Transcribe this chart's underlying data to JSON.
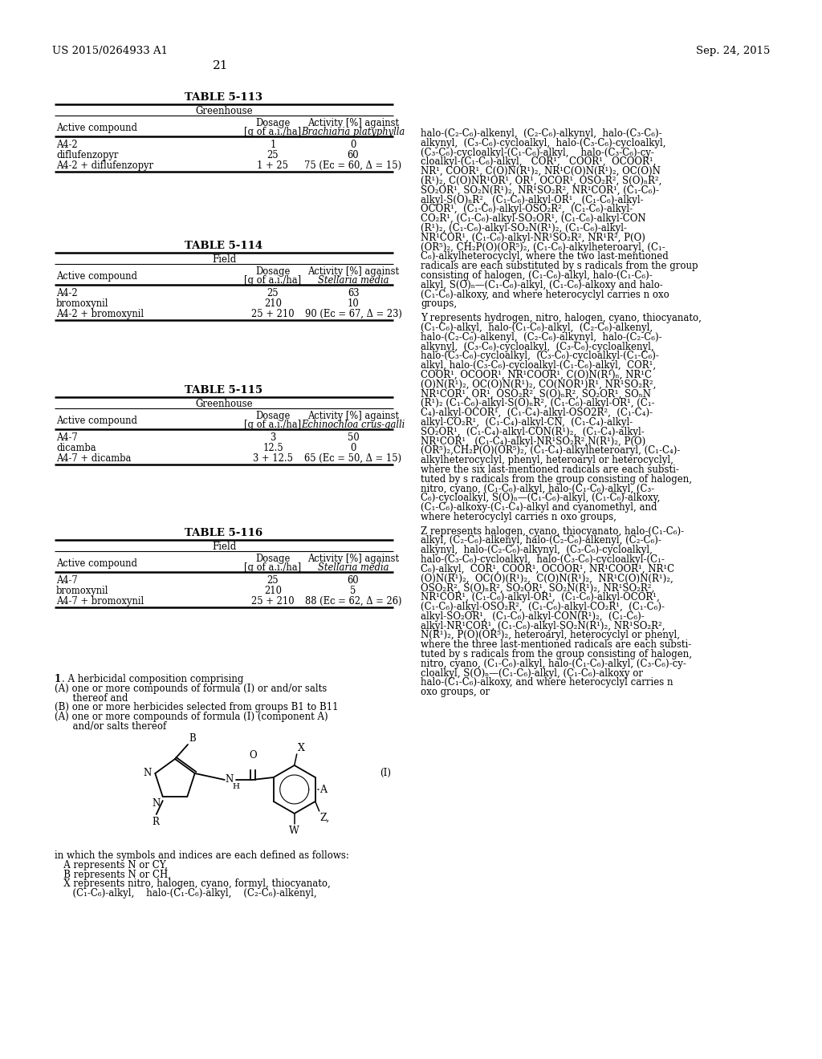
{
  "header_left": "US 2015/0264933 A1",
  "header_right": "Sep. 24, 2015",
  "page_number": "21",
  "tables": [
    {
      "title": "TABLE 5-113",
      "subtitle": "Greenhouse",
      "col3_italic": "Brachiaria platyphylla",
      "rows": [
        [
          "A4-2",
          "1",
          "0"
        ],
        [
          "diflufenzopyr",
          "25",
          "60"
        ],
        [
          "A4-2 + diflufenzopyr",
          "1 + 25",
          "75 (Eᴄ = 60, Δ = 15)"
        ]
      ]
    },
    {
      "title": "TABLE 5-114",
      "subtitle": "Field",
      "col3_italic": "Stellaria media",
      "rows": [
        [
          "A4-2",
          "25",
          "63"
        ],
        [
          "bromoxynil",
          "210",
          "10"
        ],
        [
          "A4-2 + bromoxynil",
          "25 + 210",
          "90 (Eᴄ = 67, Δ = 23)"
        ]
      ]
    },
    {
      "title": "TABLE 5-115",
      "subtitle": "Greenhouse",
      "col3_italic": "Echinochloa crus-galli",
      "rows": [
        [
          "A4-7",
          "3",
          "50"
        ],
        [
          "dicamba",
          "12.5",
          "0"
        ],
        [
          "A4-7 + dicamba",
          "3 + 12.5",
          "65 (Eᴄ = 50, Δ = 15)"
        ]
      ]
    },
    {
      "title": "TABLE 5-116",
      "subtitle": "Field",
      "col3_italic": "Stellaria media",
      "rows": [
        [
          "A4-7",
          "25",
          "60"
        ],
        [
          "bromoxynil",
          "210",
          "5"
        ],
        [
          "A4-7 + bromoxynil",
          "25 + 210",
          "88 (Eᴄ = 62, Δ = 26)"
        ]
      ]
    }
  ],
  "claim_lines": [
    "   ¹· A herbicidal composition comprising",
    "(A) one or more compounds of formula (I) or and/or salts",
    "      thereof and",
    "(B) one or more herbicides selected from groups B1 to B11",
    "(A) one or more compounds of formula (I) (component A)",
    "      and/or salts thereof"
  ],
  "symbol_lines": [
    "in which the symbols and indices are each defined as follows:",
    "   A represents N or CY,",
    "   B represents N or CH,",
    "   X represents nitro, halogen, cyano, formyl, thiocyanato,",
    "      (C₁-C₆)-alkyl,    halo-(C₁-C₆)-alkyl,    (C₂-C₆)-alkenyl,"
  ],
  "right_col_lines": [
    "halo-(C₂-C₆)-alkenyl,  (C₂-C₆)-alkynyl,  halo-(C₃-C₆)-",
    "alkynyl,  (C₃-C₆)-cycloalkyl,  halo-(C₃-C₆)-cycloalkyl,",
    "(C₃-C₆)-cycloalkyl-(C₁-C₆)-alkyl,    halo-(C₃-C₆)-cy-",
    "cloalkyl-(C₁-C₆)-alkyl,   COR¹,   COOR¹,  OCOOR¹,",
    "NR¹, COOR¹, C(O)N(R¹)₂, NR¹C(O)N(R¹)₂, OC(O)N",
    "(R¹)₂, C(O)NR¹OR¹, OR¹, OCOR¹, OSO₂R², S(O)ₙR²,",
    "SO₂OR¹, SO₂N(R¹)₂, NR¹SO₂R², NR¹COR¹, (C₁-C₆)-",
    "alkyl-S(O)ₙR²,  (C₁-C₆)-alkyl-OR¹,  (C₁-C₆)-alkyl-",
    "OCOR¹,  (C₁-C₆)-alkyl-OSO₂R²,  (C₁-C₆)-alkyl-",
    "CO₂R¹, (C₁-C₆)-alkyl-SO₂OR¹, (C₁-C₆)-alkyl-CON",
    "(R¹)₂, (C₁-C₆)-alkyl-SO₂N(R¹)₂, (C₁-C₆)-alkyl-",
    "NR¹COR¹, (C₁-C₆)-alkyl-NR¹SO₂R², NR¹R², P(O)",
    "(OR⁵)₂, CH₂P(O)(OR⁵)₂, (C₁-C₆)-alkylheteroaryl, (C₁-",
    "C₆)-alkylheterocyclyl, where the two last-mentioned",
    "radicals are each substituted by s radicals from the group",
    "consisting of halogen, (C₁-C₆)-alkyl, halo-(C₁-C₆)-",
    "alkyl, S(O)ₙ—(C₁-C₆)-alkyl, (C₁-C₆)-alkoxy and halo-",
    "(C₁-C₆)-alkoxy, and where heterocyclyl carries n oxo",
    "groups,",
    "",
    "Y represents hydrogen, nitro, halogen, cyano, thiocyanato,",
    "(C₁-C₆)-alkyl,  halo-(C₁-C₆)-alkyl,  (C₂-C₆)-alkenyl,",
    "halo-(C₂-C₆)-alkenyl,  (C₂-C₆)-alkynyl,  halo-(C₂-C₆)-",
    "alkynyl,  (C₃-C₆)-cycloalkyl,  (C₃-C₆)-cycloalkenyl,",
    "halo-(C₃-C₆)-cycloalkyl,  (C₃-C₆)-cycloalkyl-(C₁-C₆)-",
    "alkyl, halo-(C₃-C₆)-cycloalkyl-(C₁-C₆)-alkyl,  COR¹,",
    "COOR¹, OCOOR¹, NR¹COOR¹, C(O)N(R¹)ₙ, NR¹C",
    "(O)N(R¹)₂, OC(O)N(R¹)₂, CO(NOR¹)R¹, NR¹SO₂R²,",
    "NR¹COR¹, OR¹, OSO₂R², S(O)ₙR², SO₂OR¹, SOₙN",
    "(R¹)₂ (C₁-C₆)-alkyl-S(O)ₙR², (C₁-C₆)-alkyl-OR¹, (C₁-",
    "C₄)-alkyl-OCOR¹,  (C₁-C₄)-alkyl-OSO2R²,  (C₁-C₄)-",
    "alkyl-CO₂R¹,  (C₁-C₄)-alkyl-CN,  (C₁-C₄)-alkyl-",
    "SO₂OR¹,  (C₁-C₄)-alkyl-CON(R¹)₂,  (C₁-C₄)-alkyl-",
    "NR¹COR¹,  (C₁-C₄)-alkyl-NR¹SO₂R²,N(R¹)₂, P(O)",
    "(OR⁵)₂,CH₂P(O)(OR⁵)₂, (C₁-C₄)-alkylheteroaryl, (C₁-C₄)-",
    "alkylheterocyclyl, phenyl, heteroaryl or heterocyclyl,",
    "where the six last-mentioned radicals are each substi-",
    "tuted by s radicals from the group consisting of halogen,",
    "nitro, cyano, (C₁-C₆)-alkyl, halo-(C₁-C₆)-alkyl, (C₃-",
    "C₆)-cycloalkyl, S(O)ₙ—(C₁-C₆)-alkyl, (C₁-C₆)-alkoxy,",
    "(C₁-C₆)-alkoxy-(C₁-C₄)-alkyl and cyanomethyl, and",
    "where heterocyclyl carries n oxo groups,",
    "",
    "Z represents halogen, cyano, thiocyanato, halo-(C₁-C₆)-",
    "alkyl, (C₂-C₆)-alkenyl, halo-(C₂-C₆)-alkenyl, (C₂-C₆)-",
    "alkynyl,  halo-(C₂-C₆)-alkynyl,  (C₃-C₆)-cycloalkyl,",
    "halo-(C₃-C₆)-cycloalkyl,  halo-(C₃-C₆)-cycloalkyl-(C₁-",
    "C₆)-alkyl,  COR¹, COOR¹, OCOOR¹, NR¹COOR¹, NR¹C",
    "(O)N(R¹)₂,  OC(O)(R¹)₂,  C(O)N(R¹)₂,  NR¹C(O)N(R¹)₂,",
    "OSO₂R², S(O)ₙR², SO₂OR¹, SO₂N(R¹)₂, NR¹SO₂R²,",
    "NR¹COR¹, (C₁-C₆)-alkyl-OR¹,  (C₁-C₆)-alkyl-OCOR¹,",
    "(C₁-C₆)-alkyl-OSO₂R²,  (C₁-C₆)-alkyl-CO₂R¹,  (C₁-C₆)-",
    "alkyl-SO₂OR¹,  (C₁-C₆)-alkyl-CON(R¹)₂,  (C₁-C₆)-",
    "alkyl-NR¹COR¹, (C₁-C₆)-alkyl-SO₂N(R¹)₂, NR¹SO₂R²,",
    "N(R¹)₂, P(O)(OR⁵)₂, heteroaryl, heterocyclyl or phenyl,",
    "where the three last-mentioned radicals are each substi-",
    "tuted by s radicals from the group consisting of halogen,",
    "nitro, cyano, (C₁-C₆)-alkyl, halo-(C₁-C₆)-alkyl, (C₃-C₆)-cy-",
    "cloalkyl, S(O)ₙ—(C₁-C₆)-alkyl, (C₁-C₆)-alkoxy or",
    "halo-(C₁-C₆)-alkoxy, and where heterocyclyl carries n",
    "oxo groups, or"
  ]
}
